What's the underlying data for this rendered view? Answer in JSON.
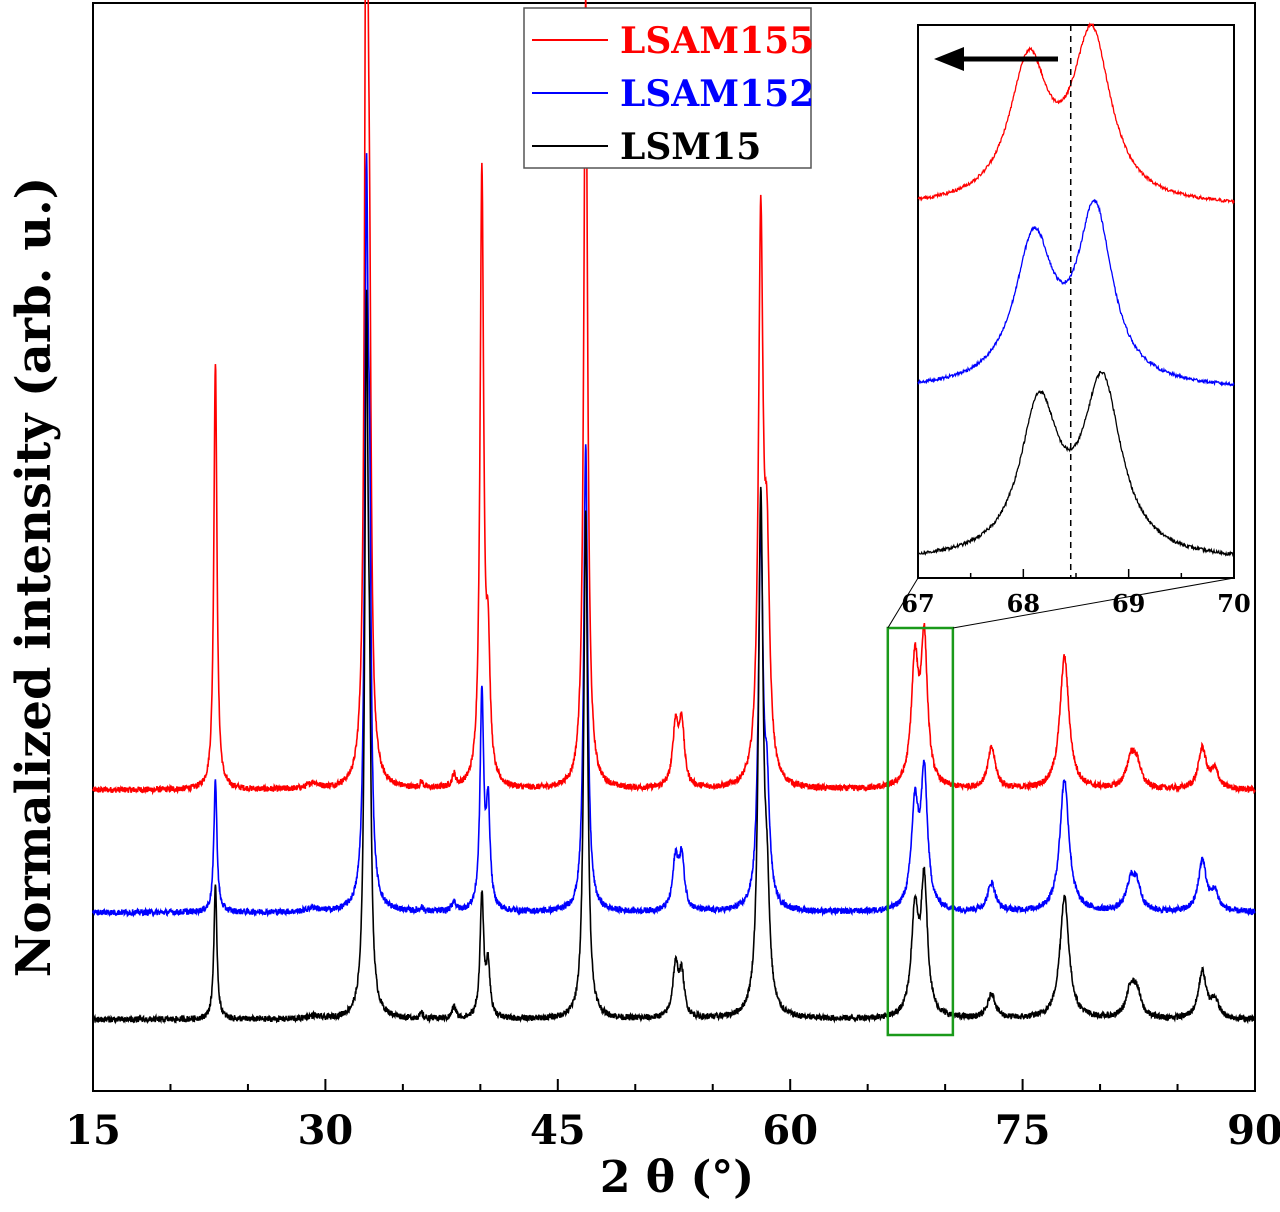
{
  "chart_data": [
    {
      "type": "line",
      "title": "",
      "xlabel": "2 θ (°)",
      "ylabel": "Normalized intensity (arb. u.)",
      "xlim": [
        15,
        90
      ],
      "x_ticks": [
        "15",
        "30",
        "45",
        "60",
        "75",
        "90"
      ],
      "y_ticks": [],
      "grid": false,
      "legend_position": "top-center",
      "series": [
        {
          "name": "LSAM155",
          "color": "#ff0000",
          "baseline": 0.295,
          "peaks": [
            [
              22.9,
              0.42,
              0.12
            ],
            [
              29.2,
              0.006,
              0.4
            ],
            [
              32.65,
              1.0,
              0.13
            ],
            [
              32.85,
              0.32,
              0.12
            ],
            [
              36.2,
              0.006,
              0.12
            ],
            [
              38.3,
              0.012,
              0.14
            ],
            [
              40.1,
              0.6,
              0.14
            ],
            [
              40.5,
              0.12,
              0.15
            ],
            [
              46.8,
              0.775,
              0.15
            ],
            [
              52.6,
              0.06,
              0.22
            ],
            [
              53.0,
              0.06,
              0.2
            ],
            [
              58.1,
              0.54,
              0.18
            ],
            [
              58.5,
              0.2,
              0.2
            ],
            [
              68.05,
              0.12,
              0.28
            ],
            [
              68.65,
              0.14,
              0.25
            ],
            [
              73.0,
              0.04,
              0.3
            ],
            [
              77.7,
              0.13,
              0.35
            ],
            [
              82.0,
              0.03,
              0.35
            ],
            [
              82.4,
              0.02,
              0.3
            ],
            [
              86.6,
              0.04,
              0.3
            ],
            [
              87.4,
              0.018,
              0.3
            ]
          ]
        },
        {
          "name": "LSAM152",
          "color": "#0000ff",
          "baseline": 0.175,
          "peaks": [
            [
              22.9,
              0.13,
              0.12
            ],
            [
              29.2,
              0.004,
              0.4
            ],
            [
              32.65,
              0.66,
              0.13
            ],
            [
              32.85,
              0.3,
              0.12
            ],
            [
              36.2,
              0.004,
              0.12
            ],
            [
              38.3,
              0.01,
              0.14
            ],
            [
              40.1,
              0.21,
              0.14
            ],
            [
              40.5,
              0.1,
              0.15
            ],
            [
              46.8,
              0.46,
              0.15
            ],
            [
              52.6,
              0.05,
              0.22
            ],
            [
              53.0,
              0.05,
              0.2
            ],
            [
              58.1,
              0.36,
              0.18
            ],
            [
              58.5,
              0.1,
              0.2
            ],
            [
              68.05,
              0.1,
              0.28
            ],
            [
              68.65,
              0.13,
              0.25
            ],
            [
              73.0,
              0.028,
              0.3
            ],
            [
              77.7,
              0.13,
              0.35
            ],
            [
              82.0,
              0.03,
              0.35
            ],
            [
              82.4,
              0.02,
              0.3
            ],
            [
              86.6,
              0.05,
              0.3
            ],
            [
              87.4,
              0.018,
              0.3
            ]
          ]
        },
        {
          "name": "LSM15",
          "color": "#000000",
          "baseline": 0.07,
          "peaks": [
            [
              22.9,
              0.13,
              0.12
            ],
            [
              29.2,
              0.003,
              0.4
            ],
            [
              32.65,
              0.66,
              0.13
            ],
            [
              32.85,
              0.2,
              0.12
            ],
            [
              36.2,
              0.005,
              0.12
            ],
            [
              38.3,
              0.012,
              0.14
            ],
            [
              40.1,
              0.12,
              0.14
            ],
            [
              40.5,
              0.05,
              0.15
            ],
            [
              46.8,
              0.5,
              0.15
            ],
            [
              52.6,
              0.05,
              0.22
            ],
            [
              53.0,
              0.04,
              0.2
            ],
            [
              58.1,
              0.5,
              0.18
            ],
            [
              58.5,
              0.1,
              0.2
            ],
            [
              68.05,
              0.1,
              0.28
            ],
            [
              68.65,
              0.13,
              0.25
            ],
            [
              73.0,
              0.024,
              0.3
            ],
            [
              77.7,
              0.12,
              0.35
            ],
            [
              82.0,
              0.03,
              0.35
            ],
            [
              82.4,
              0.02,
              0.3
            ],
            [
              86.6,
              0.046,
              0.3
            ],
            [
              87.4,
              0.018,
              0.3
            ]
          ]
        }
      ]
    },
    {
      "type": "line",
      "title": "",
      "xlabel": "",
      "ylabel": "",
      "xlim": [
        67,
        70
      ],
      "x_ticks": [
        "67",
        "68",
        "69",
        "70"
      ],
      "grid": false,
      "legend_position": "none",
      "annotations": [
        "arrow pointing left toward lower 2θ",
        "dashed vertical reference line at 68.45"
      ],
      "reference_line_x": 68.45,
      "series": [
        {
          "name": "LSAM155",
          "color": "#ff0000",
          "baseline": 0.67,
          "peaks": [
            [
              68.05,
              0.25,
              0.22
            ],
            [
              68.65,
              0.3,
              0.22
            ]
          ]
        },
        {
          "name": "LSAM152",
          "color": "#0000ff",
          "baseline": 0.34,
          "peaks": [
            [
              68.1,
              0.26,
              0.22
            ],
            [
              68.68,
              0.31,
              0.2
            ]
          ]
        },
        {
          "name": "LSM15",
          "color": "#000000",
          "baseline": 0.03,
          "peaks": [
            [
              68.15,
              0.27,
              0.22
            ],
            [
              68.75,
              0.31,
              0.22
            ]
          ]
        }
      ]
    }
  ]
}
